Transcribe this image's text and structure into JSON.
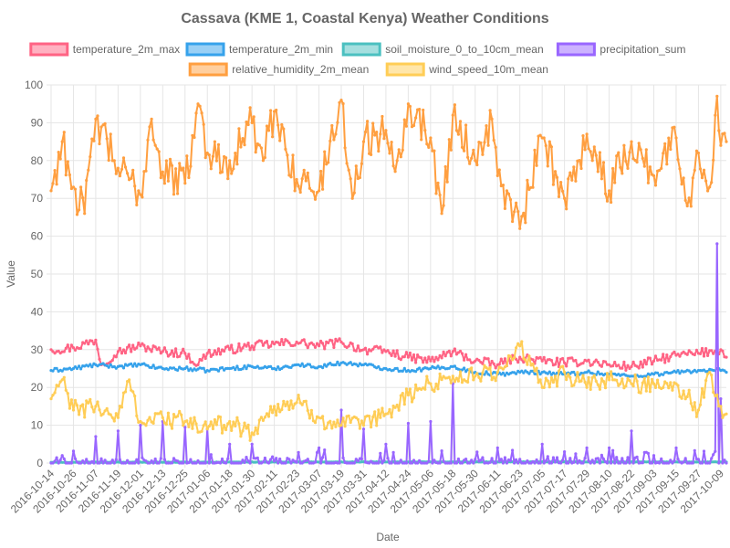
{
  "chart_data": {
    "type": "line",
    "title": "Cassava (KME 1, Coastal Kenya) Weather Conditions",
    "xlabel": "Date",
    "ylabel": "Value",
    "ylim": [
      0,
      100
    ],
    "yticks": [
      0,
      10,
      20,
      30,
      40,
      50,
      60,
      70,
      80,
      90,
      100
    ],
    "grid": true,
    "legend_position": "top",
    "x_range": [
      "2016-10-14",
      "2017-10-12"
    ],
    "x_tick_labels": [
      "2016-10-14",
      "2016-10-26",
      "2016-11-07",
      "2016-11-19",
      "2016-12-01",
      "2016-12-13",
      "2016-12-25",
      "2017-01-06",
      "2017-01-18",
      "2017-01-30",
      "2017-02-11",
      "2017-02-23",
      "2017-03-07",
      "2017-03-19",
      "2017-03-31",
      "2017-04-12",
      "2017-04-24",
      "2017-05-06",
      "2017-05-18",
      "2017-05-30",
      "2017-06-11",
      "2017-06-23",
      "2017-07-05",
      "2017-07-17",
      "2017-07-29",
      "2017-08-10",
      "2017-08-22",
      "2017-09-03",
      "2017-09-15",
      "2017-09-27",
      "2017-10-09"
    ],
    "series": [
      {
        "name": "temperature_2m_max",
        "color": "#ff6384",
        "fill": "#ffb1c1",
        "points": [
          [
            "2016-10-14",
            30
          ],
          [
            "2016-10-26",
            30.5
          ],
          [
            "2016-11-07",
            32.5
          ],
          [
            "2016-11-10",
            26
          ],
          [
            "2016-11-19",
            29.5
          ],
          [
            "2016-12-01",
            31
          ],
          [
            "2016-12-13",
            29.5
          ],
          [
            "2016-12-25",
            29
          ],
          [
            "2017-01-01",
            26
          ],
          [
            "2017-01-06",
            29
          ],
          [
            "2017-01-18",
            30
          ],
          [
            "2017-01-30",
            31
          ],
          [
            "2017-02-11",
            31.5
          ],
          [
            "2017-02-23",
            32
          ],
          [
            "2017-03-07",
            31
          ],
          [
            "2017-03-19",
            32
          ],
          [
            "2017-03-31",
            30
          ],
          [
            "2017-04-12",
            29.5
          ],
          [
            "2017-04-24",
            28
          ],
          [
            "2017-05-06",
            27
          ],
          [
            "2017-05-18",
            29.5
          ],
          [
            "2017-05-30",
            27
          ],
          [
            "2017-06-11",
            26
          ],
          [
            "2017-06-23",
            28
          ],
          [
            "2017-07-05",
            27
          ],
          [
            "2017-07-17",
            26.5
          ],
          [
            "2017-07-29",
            27
          ],
          [
            "2017-08-10",
            26
          ],
          [
            "2017-08-22",
            25.5
          ],
          [
            "2017-09-03",
            27
          ],
          [
            "2017-09-15",
            28.5
          ],
          [
            "2017-09-27",
            29
          ],
          [
            "2017-10-09",
            30
          ],
          [
            "2017-10-12",
            28
          ]
        ]
      },
      {
        "name": "temperature_2m_min",
        "color": "#36a2eb",
        "fill": "#9ad0f5",
        "points": [
          [
            "2016-10-14",
            24.5
          ],
          [
            "2016-10-26",
            25
          ],
          [
            "2016-11-07",
            26
          ],
          [
            "2016-11-19",
            25.5
          ],
          [
            "2016-12-01",
            26
          ],
          [
            "2016-12-13",
            25
          ],
          [
            "2016-12-25",
            25
          ],
          [
            "2017-01-06",
            24.5
          ],
          [
            "2017-01-18",
            25
          ],
          [
            "2017-01-30",
            25.5
          ],
          [
            "2017-02-11",
            25
          ],
          [
            "2017-02-23",
            26
          ],
          [
            "2017-03-07",
            25.5
          ],
          [
            "2017-03-19",
            26.5
          ],
          [
            "2017-03-31",
            26
          ],
          [
            "2017-04-12",
            25
          ],
          [
            "2017-04-24",
            24.5
          ],
          [
            "2017-05-06",
            25
          ],
          [
            "2017-05-18",
            25.5
          ],
          [
            "2017-05-30",
            24
          ],
          [
            "2017-06-11",
            23.5
          ],
          [
            "2017-06-23",
            24
          ],
          [
            "2017-07-05",
            24
          ],
          [
            "2017-07-17",
            23.5
          ],
          [
            "2017-07-29",
            24
          ],
          [
            "2017-08-10",
            23.5
          ],
          [
            "2017-08-22",
            23
          ],
          [
            "2017-09-03",
            23.5
          ],
          [
            "2017-09-15",
            24
          ],
          [
            "2017-09-27",
            24.5
          ],
          [
            "2017-10-09",
            24.5
          ],
          [
            "2017-10-12",
            24
          ]
        ]
      },
      {
        "name": "soil_moisture_0_to_10cm_mean",
        "color": "#4bc0c0",
        "fill": "#a5dfdf",
        "points": [
          [
            "2016-10-14",
            0.2
          ],
          [
            "2017-04-24",
            0.3
          ],
          [
            "2017-10-12",
            0.3
          ]
        ]
      },
      {
        "name": "precipitation_sum",
        "color": "#9966ff",
        "fill": "#ccb2ff",
        "points": [
          [
            "2016-10-14",
            0
          ],
          [
            "2016-10-20",
            2
          ],
          [
            "2016-11-07",
            7
          ],
          [
            "2016-11-19",
            8.5
          ],
          [
            "2016-12-01",
            10
          ],
          [
            "2016-12-13",
            11
          ],
          [
            "2016-12-25",
            9.5
          ],
          [
            "2017-01-06",
            9
          ],
          [
            "2017-01-18",
            5
          ],
          [
            "2017-01-30",
            5
          ],
          [
            "2017-02-11",
            0.5
          ],
          [
            "2017-03-07",
            4
          ],
          [
            "2017-03-19",
            14
          ],
          [
            "2017-03-31",
            9
          ],
          [
            "2017-04-12",
            5
          ],
          [
            "2017-04-24",
            10.5
          ],
          [
            "2017-05-06",
            11
          ],
          [
            "2017-05-18",
            21
          ],
          [
            "2017-05-30",
            1
          ],
          [
            "2017-06-11",
            4
          ],
          [
            "2017-06-23",
            1
          ],
          [
            "2017-07-05",
            5
          ],
          [
            "2017-07-17",
            3
          ],
          [
            "2017-07-29",
            4
          ],
          [
            "2017-08-10",
            4
          ],
          [
            "2017-08-22",
            8.5
          ],
          [
            "2017-09-03",
            2
          ],
          [
            "2017-09-15",
            4
          ],
          [
            "2017-09-27",
            1
          ],
          [
            "2017-10-07",
            58
          ],
          [
            "2017-10-09",
            17
          ],
          [
            "2017-10-12",
            0
          ]
        ]
      },
      {
        "name": "relative_humidity_2m_mean",
        "color": "#ff9f40",
        "fill": "#ffcf9f",
        "points": [
          [
            "2016-10-14",
            72
          ],
          [
            "2016-10-20",
            85
          ],
          [
            "2016-10-26",
            73
          ],
          [
            "2016-11-01",
            66
          ],
          [
            "2016-11-07",
            91
          ],
          [
            "2016-11-19",
            78
          ],
          [
            "2016-12-01",
            71
          ],
          [
            "2016-12-07",
            91
          ],
          [
            "2016-12-13",
            77
          ],
          [
            "2016-12-25",
            74
          ],
          [
            "2017-01-01",
            95
          ],
          [
            "2017-01-06",
            82
          ],
          [
            "2017-01-18",
            80
          ],
          [
            "2017-01-30",
            90
          ],
          [
            "2017-02-05",
            80
          ],
          [
            "2017-02-11",
            93
          ],
          [
            "2017-02-23",
            75
          ],
          [
            "2017-03-07",
            72
          ],
          [
            "2017-03-19",
            96
          ],
          [
            "2017-03-25",
            70
          ],
          [
            "2017-03-31",
            85
          ],
          [
            "2017-04-12",
            88
          ],
          [
            "2017-04-18",
            80
          ],
          [
            "2017-04-24",
            95
          ],
          [
            "2017-05-06",
            86
          ],
          [
            "2017-05-12",
            66
          ],
          [
            "2017-05-18",
            92
          ],
          [
            "2017-05-30",
            80
          ],
          [
            "2017-06-08",
            91
          ],
          [
            "2017-06-11",
            76
          ],
          [
            "2017-06-23",
            62
          ],
          [
            "2017-07-05",
            86
          ],
          [
            "2017-07-17",
            70
          ],
          [
            "2017-07-29",
            87
          ],
          [
            "2017-08-10",
            72
          ],
          [
            "2017-08-22",
            85
          ],
          [
            "2017-09-03",
            76
          ],
          [
            "2017-09-15",
            86
          ],
          [
            "2017-09-21",
            68
          ],
          [
            "2017-09-27",
            82
          ],
          [
            "2017-10-03",
            73
          ],
          [
            "2017-10-07",
            97
          ],
          [
            "2017-10-09",
            84
          ],
          [
            "2017-10-12",
            85
          ]
        ]
      },
      {
        "name": "wind_speed_10m_mean",
        "color": "#ffcd56",
        "fill": "#ffe6aa",
        "points": [
          [
            "2016-10-14",
            17
          ],
          [
            "2016-10-20",
            22
          ],
          [
            "2016-10-26",
            14
          ],
          [
            "2016-11-07",
            15
          ],
          [
            "2016-11-19",
            12
          ],
          [
            "2016-11-25",
            22
          ],
          [
            "2016-12-01",
            11
          ],
          [
            "2016-12-13",
            12
          ],
          [
            "2016-12-25",
            11
          ],
          [
            "2017-01-06",
            9
          ],
          [
            "2017-01-18",
            11
          ],
          [
            "2017-01-30",
            8
          ],
          [
            "2017-02-11",
            15
          ],
          [
            "2017-02-23",
            16
          ],
          [
            "2017-03-07",
            12
          ],
          [
            "2017-03-19",
            10
          ],
          [
            "2017-03-31",
            10
          ],
          [
            "2017-04-12",
            13
          ],
          [
            "2017-04-24",
            18
          ],
          [
            "2017-05-06",
            21
          ],
          [
            "2017-05-18",
            23
          ],
          [
            "2017-05-30",
            23
          ],
          [
            "2017-06-11",
            24
          ],
          [
            "2017-06-23",
            31
          ],
          [
            "2017-07-05",
            20
          ],
          [
            "2017-07-17",
            24
          ],
          [
            "2017-07-29",
            20
          ],
          [
            "2017-08-10",
            22
          ],
          [
            "2017-08-22",
            21
          ],
          [
            "2017-09-03",
            21
          ],
          [
            "2017-09-15",
            21
          ],
          [
            "2017-09-27",
            14
          ],
          [
            "2017-10-03",
            24
          ],
          [
            "2017-10-09",
            15
          ],
          [
            "2017-10-12",
            13
          ]
        ]
      }
    ]
  }
}
